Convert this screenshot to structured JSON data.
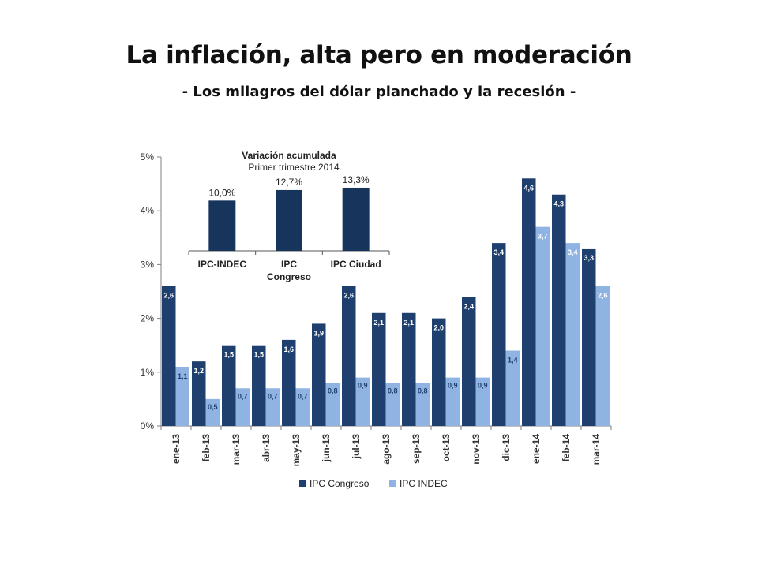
{
  "slide": {
    "title": "La inflación, alta pero en moderación",
    "subtitle": "- Los milagros del dólar planchado y la recesión -"
  },
  "chart_data": [
    {
      "type": "bar",
      "categories": [
        "ene-13",
        "feb-13",
        "mar-13",
        "abr-13",
        "may-13",
        "jun-13",
        "jul-13",
        "ago-13",
        "sep-13",
        "oct-13",
        "nov-13",
        "dic-13",
        "ene-14",
        "feb-14",
        "mar-14"
      ],
      "series": [
        {
          "name": "IPC Congreso",
          "color": "#1f3f6e",
          "values": [
            2.6,
            1.2,
            1.5,
            1.5,
            1.6,
            1.9,
            2.6,
            2.1,
            2.1,
            2.0,
            2.4,
            3.4,
            4.6,
            4.3,
            3.3
          ],
          "labels": [
            "2,6",
            "1,2",
            "1,5",
            "1,5",
            "1,6",
            "1,9",
            "2,6",
            "2,1",
            "2,1",
            "2,0",
            "2,4",
            "3,4",
            "4,6",
            "4,3",
            "3,3"
          ]
        },
        {
          "name": "IPC INDEC",
          "color": "#8fb4e3",
          "values": [
            1.1,
            0.5,
            0.7,
            0.7,
            0.7,
            0.8,
            0.9,
            0.8,
            0.8,
            0.9,
            0.9,
            1.4,
            3.7,
            3.4,
            2.6
          ],
          "labels": [
            "1,1",
            "0,5",
            "0,7",
            "0,7",
            "0,7",
            "0,8",
            "0,9",
            "0,8",
            "0,8",
            "0,9",
            "0,9",
            "1,4",
            "3,7",
            "3,4",
            "2,6"
          ]
        }
      ],
      "ylim": [
        0,
        5
      ],
      "yticks": [
        "0%",
        "1%",
        "2%",
        "3%",
        "4%",
        "5%"
      ],
      "legend": "bottom"
    },
    {
      "type": "bar",
      "title": "Variación acumulada",
      "subtitle": "Primer trimestre 2014",
      "categories": [
        [
          "IPC-INDEC"
        ],
        [
          "IPC",
          "Congreso"
        ],
        [
          "IPC Ciudad"
        ]
      ],
      "values": [
        10.0,
        12.7,
        13.3
      ],
      "labels": [
        "10,0%",
        "12,7%",
        "13,3%"
      ],
      "color": "#17345c"
    }
  ]
}
